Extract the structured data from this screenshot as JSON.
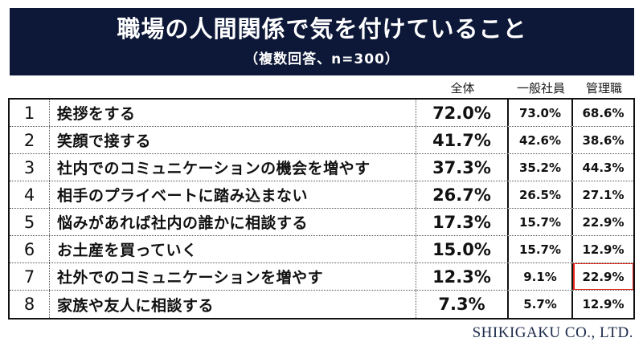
{
  "header": {
    "title": "職場の人間関係で気を付けていること",
    "subtitle": "（複数回答、n=300）"
  },
  "table": {
    "columns": [
      "全体",
      "一般社員",
      "管理職"
    ],
    "rows": [
      {
        "rank": "1",
        "label": "挨拶をする",
        "total": "72.0%",
        "staff": "73.0%",
        "manager": "68.6%"
      },
      {
        "rank": "2",
        "label": "笑顔で接する",
        "total": "41.7%",
        "staff": "42.6%",
        "manager": "38.6%"
      },
      {
        "rank": "3",
        "label": "社内でのコミュニケーションの機会を増やす",
        "total": "37.3%",
        "staff": "35.2%",
        "manager": "44.3%"
      },
      {
        "rank": "4",
        "label": "相手のプライベートに踏み込まない",
        "total": "26.7%",
        "staff": "26.5%",
        "manager": "27.1%"
      },
      {
        "rank": "5",
        "label": "悩みがあれば社内の誰かに相談する",
        "total": "17.3%",
        "staff": "15.7%",
        "manager": "22.9%"
      },
      {
        "rank": "6",
        "label": "お土産を買っていく",
        "total": "15.0%",
        "staff": "15.7%",
        "manager": "12.9%"
      },
      {
        "rank": "7",
        "label": "社外でのコミュニケーションを増やす",
        "total": "12.3%",
        "staff": "9.1%",
        "manager": "22.9%"
      },
      {
        "rank": "8",
        "label": "家族や友人に相談する",
        "total": "7.3%",
        "staff": "5.7%",
        "manager": "12.9%"
      }
    ],
    "highlight": {
      "row_rank": "7",
      "column": "管理職",
      "value": "22.9%",
      "border_color": "#e3221a"
    }
  },
  "footer": {
    "company": "SHIKIGAKU CO., LTD."
  },
  "colors": {
    "banner_background": "#0d1838",
    "banner_text": "#ffffff",
    "table_border": "#111111",
    "highlight_red": "#e3221a",
    "footer_text": "#1c2a4a"
  },
  "chart_data": {
    "type": "table",
    "title": "職場の人間関係で気を付けていること",
    "subtitle": "（複数回答、n=300）",
    "categories": [
      "挨拶をする",
      "笑顔で接する",
      "社内でのコミュニケーションの機会を増やす",
      "相手のプライベートに踏み込まない",
      "悩みがあれば社内の誰かに相談する",
      "お土産を買っていく",
      "社外でのコミュニケーションを増やす",
      "家族や友人に相談する"
    ],
    "series": [
      {
        "name": "全体",
        "values": [
          72.0,
          41.7,
          37.3,
          26.7,
          17.3,
          15.0,
          12.3,
          7.3
        ]
      },
      {
        "name": "一般社員",
        "values": [
          73.0,
          42.6,
          35.2,
          26.5,
          15.7,
          15.7,
          9.1,
          5.7
        ]
      },
      {
        "name": "管理職",
        "values": [
          68.6,
          38.6,
          44.3,
          27.1,
          22.9,
          12.9,
          22.9,
          12.9
        ]
      }
    ],
    "highlighted_cell": {
      "category": "社外でのコミュニケーションを増やす",
      "series": "管理職",
      "value": 22.9
    }
  }
}
